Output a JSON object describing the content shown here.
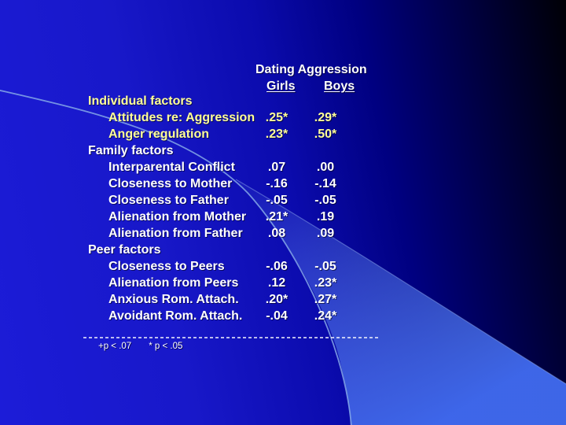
{
  "table": {
    "title": "Dating Aggression",
    "columns": [
      "Girls",
      "Boys"
    ],
    "sections": [
      {
        "label": "Individual factors",
        "color": "yellow",
        "rows": [
          {
            "label": "Attitudes re: Aggression",
            "girls": ".25*",
            "boys": ".29*"
          },
          {
            "label": "Anger regulation",
            "girls": ".23*",
            "boys": ".50*"
          }
        ]
      },
      {
        "label": "Family factors",
        "color": "white",
        "rows": [
          {
            "label": "Interparental Conflict",
            "girls": ".07",
            "boys": ".00"
          },
          {
            "label": "Closeness to Mother",
            "girls": "-.16",
            "boys": "-.14"
          },
          {
            "label": "Closeness to Father",
            "girls": "-.05",
            "boys": "-.05"
          },
          {
            "label": "Alienation from Mother",
            "girls": ".21*",
            "boys": ".19"
          },
          {
            "label": "Alienation from Father",
            "girls": ".08",
            "boys": ".09"
          }
        ]
      },
      {
        "label": "Peer factors",
        "color": "white",
        "rows": [
          {
            "label": "Closeness to Peers",
            "girls": "-.06",
            "boys": "-.05"
          },
          {
            "label": "Alienation from Peers",
            "girls": ".12",
            "boys": ".23*"
          },
          {
            "label": "Anxious Rom. Attach.",
            "girls": ".20*",
            "boys": ".27*"
          },
          {
            "label": "Avoidant Rom. Attach.",
            "girls": "-.04",
            "boys": ".24*"
          }
        ]
      }
    ],
    "footnote": {
      "note1": "+p < .07",
      "note2": "* p < .05"
    }
  },
  "colors": {
    "yellow": "#ffff99",
    "white": "#ffffff",
    "swoosh_blue": "#3f68e6",
    "curve_line": "#85a8e8",
    "divider_white": "#ffffff"
  }
}
